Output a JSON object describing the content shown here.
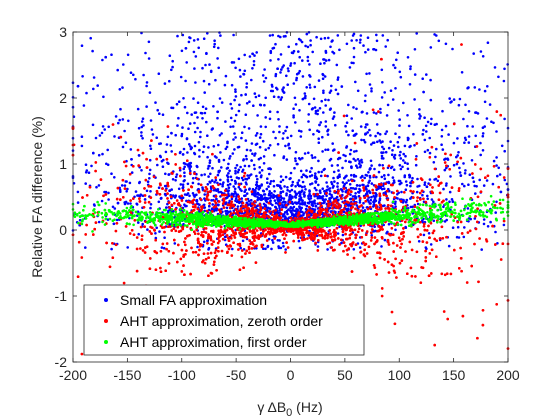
{
  "chart_data": {
    "type": "scatter",
    "xlabel_prefix": "γ ΔB",
    "xlabel_sub": "0",
    "xlabel_suffix": " (Hz)",
    "ylabel": "Relative FA difference (%)",
    "xlim": [
      -200,
      200
    ],
    "ylim": [
      -2,
      3
    ],
    "x_ticks": [
      -200,
      -150,
      -100,
      -50,
      0,
      50,
      100,
      150,
      200
    ],
    "y_ticks": [
      -2,
      -1,
      0,
      1,
      2,
      3
    ],
    "grid": false,
    "legend_position": "bottom-left",
    "series": [
      {
        "name": "Small FA approximation",
        "color": "#0000ff",
        "shape": "spread-above-v",
        "points_estimated": 3000
      },
      {
        "name": "AHT approximation, zeroth order",
        "color": "#ff0000",
        "shape": "butterfly",
        "points_estimated": 3500
      },
      {
        "name": "AHT approximation, first order",
        "color": "#00ff00",
        "shape": "thin-band-rising",
        "points_estimated": 2500
      }
    ]
  }
}
